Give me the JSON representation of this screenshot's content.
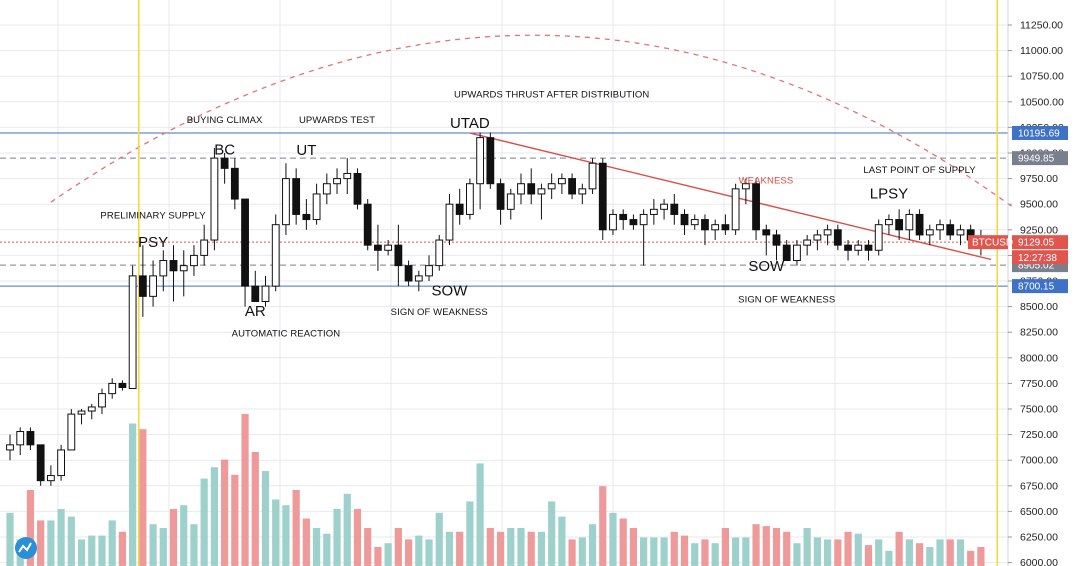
{
  "chart_data": {
    "type": "candlestick",
    "symbol": "BTCUSD",
    "countdown": "12:27:38",
    "ylim": [
      6000,
      11500
    ],
    "y_ticks": [
      "11250.00",
      "11000.00",
      "10750.00",
      "10500.00",
      "10250.00",
      "10000.00",
      "9750.00",
      "9500.00",
      "9250.00",
      "9000.00",
      "8750.00",
      "8500.00",
      "8250.00",
      "8000.00",
      "7750.00",
      "7500.00",
      "7250.00",
      "7000.00",
      "6750.00",
      "6500.00",
      "6250.00",
      "6000.00"
    ],
    "price_levels": [
      {
        "label": "10195.69",
        "value": 10195.69,
        "style": "solid",
        "color": "#3d72c6"
      },
      {
        "label": "9949.85",
        "value": 9949.85,
        "style": "dashed",
        "color": "#7a7f8e"
      },
      {
        "label": "9129.05",
        "value": 9129.05,
        "style": "dotted",
        "color": "#e0564f"
      },
      {
        "label": "8905.02",
        "value": 8905.02,
        "style": "dashed",
        "color": "#7a7f8e"
      },
      {
        "label": "8700.15",
        "value": 8700.15,
        "style": "solid",
        "color": "#3d72c6"
      }
    ],
    "candles": [
      {
        "o": 7100,
        "h": 7250,
        "l": 7000,
        "c": 7150
      },
      {
        "o": 7150,
        "h": 7320,
        "l": 7050,
        "c": 7280
      },
      {
        "o": 7280,
        "h": 7320,
        "l": 7100,
        "c": 7150
      },
      {
        "o": 7150,
        "h": 7150,
        "l": 6750,
        "c": 6800
      },
      {
        "o": 6800,
        "h": 6950,
        "l": 6750,
        "c": 6850
      },
      {
        "o": 6850,
        "h": 7150,
        "l": 6800,
        "c": 7100
      },
      {
        "o": 7100,
        "h": 7500,
        "l": 7100,
        "c": 7450
      },
      {
        "o": 7450,
        "h": 7500,
        "l": 7350,
        "c": 7480
      },
      {
        "o": 7480,
        "h": 7550,
        "l": 7400,
        "c": 7520
      },
      {
        "o": 7520,
        "h": 7700,
        "l": 7450,
        "c": 7650
      },
      {
        "o": 7650,
        "h": 7800,
        "l": 7600,
        "c": 7750
      },
      {
        "o": 7750,
        "h": 7780,
        "l": 7680,
        "c": 7710
      },
      {
        "o": 7700,
        "h": 8900,
        "l": 7700,
        "c": 8800
      },
      {
        "o": 8800,
        "h": 9100,
        "l": 8400,
        "c": 8600
      },
      {
        "o": 8600,
        "h": 8950,
        "l": 8500,
        "c": 8800
      },
      {
        "o": 8800,
        "h": 9050,
        "l": 8650,
        "c": 8950
      },
      {
        "o": 8950,
        "h": 9100,
        "l": 8550,
        "c": 8850
      },
      {
        "o": 8850,
        "h": 9050,
        "l": 8600,
        "c": 8900
      },
      {
        "o": 8900,
        "h": 9100,
        "l": 8800,
        "c": 9000
      },
      {
        "o": 9000,
        "h": 9300,
        "l": 8900,
        "c": 9150
      },
      {
        "o": 9150,
        "h": 10050,
        "l": 9050,
        "c": 9950
      },
      {
        "o": 9950,
        "h": 10000,
        "l": 9700,
        "c": 9850
      },
      {
        "o": 9850,
        "h": 9950,
        "l": 9450,
        "c": 9550
      },
      {
        "o": 9550,
        "h": 9550,
        "l": 8500,
        "c": 8700
      },
      {
        "o": 8700,
        "h": 8850,
        "l": 8600,
        "c": 8550
      },
      {
        "o": 8550,
        "h": 8800,
        "l": 8500,
        "c": 8700
      },
      {
        "o": 8700,
        "h": 9400,
        "l": 8650,
        "c": 9300
      },
      {
        "o": 9300,
        "h": 9900,
        "l": 9200,
        "c": 9750
      },
      {
        "o": 9750,
        "h": 9850,
        "l": 9300,
        "c": 9400
      },
      {
        "o": 9400,
        "h": 9550,
        "l": 9250,
        "c": 9350
      },
      {
        "o": 9350,
        "h": 9700,
        "l": 9300,
        "c": 9600
      },
      {
        "o": 9600,
        "h": 9800,
        "l": 9500,
        "c": 9700
      },
      {
        "o": 9700,
        "h": 9850,
        "l": 9600,
        "c": 9750
      },
      {
        "o": 9750,
        "h": 9950,
        "l": 9600,
        "c": 9800
      },
      {
        "o": 9800,
        "h": 9850,
        "l": 9450,
        "c": 9500
      },
      {
        "o": 9500,
        "h": 9550,
        "l": 9050,
        "c": 9100
      },
      {
        "o": 9100,
        "h": 9300,
        "l": 8850,
        "c": 9050
      },
      {
        "o": 9050,
        "h": 9150,
        "l": 9000,
        "c": 9100
      },
      {
        "o": 9100,
        "h": 9300,
        "l": 8700,
        "c": 8900
      },
      {
        "o": 8900,
        "h": 8950,
        "l": 8700,
        "c": 8750
      },
      {
        "o": 8750,
        "h": 8850,
        "l": 8650,
        "c": 8800
      },
      {
        "o": 8800,
        "h": 9000,
        "l": 8750,
        "c": 8900
      },
      {
        "o": 8900,
        "h": 9200,
        "l": 8850,
        "c": 9150
      },
      {
        "o": 9150,
        "h": 9600,
        "l": 9100,
        "c": 9500
      },
      {
        "o": 9500,
        "h": 9650,
        "l": 9300,
        "c": 9400
      },
      {
        "o": 9400,
        "h": 9750,
        "l": 9350,
        "c": 9700
      },
      {
        "o": 9700,
        "h": 10200,
        "l": 9450,
        "c": 10150
      },
      {
        "o": 10150,
        "h": 10200,
        "l": 9650,
        "c": 9700
      },
      {
        "o": 9700,
        "h": 9750,
        "l": 9300,
        "c": 9450
      },
      {
        "o": 9450,
        "h": 9650,
        "l": 9350,
        "c": 9600
      },
      {
        "o": 9600,
        "h": 9800,
        "l": 9500,
        "c": 9700
      },
      {
        "o": 9700,
        "h": 9850,
        "l": 9500,
        "c": 9600
      },
      {
        "o": 9600,
        "h": 9700,
        "l": 9350,
        "c": 9650
      },
      {
        "o": 9650,
        "h": 9800,
        "l": 9550,
        "c": 9700
      },
      {
        "o": 9700,
        "h": 9800,
        "l": 9600,
        "c": 9750
      },
      {
        "o": 9750,
        "h": 9800,
        "l": 9550,
        "c": 9600
      },
      {
        "o": 9600,
        "h": 9700,
        "l": 9500,
        "c": 9650
      },
      {
        "o": 9650,
        "h": 9950,
        "l": 9600,
        "c": 9900
      },
      {
        "o": 9900,
        "h": 9950,
        "l": 9150,
        "c": 9250
      },
      {
        "o": 9250,
        "h": 9450,
        "l": 9200,
        "c": 9400
      },
      {
        "o": 9400,
        "h": 9450,
        "l": 9250,
        "c": 9350
      },
      {
        "o": 9350,
        "h": 9400,
        "l": 9250,
        "c": 9300
      },
      {
        "o": 9300,
        "h": 9450,
        "l": 8900,
        "c": 9400
      },
      {
        "o": 9400,
        "h": 9550,
        "l": 9300,
        "c": 9450
      },
      {
        "o": 9450,
        "h": 9550,
        "l": 9350,
        "c": 9500
      },
      {
        "o": 9500,
        "h": 9600,
        "l": 9300,
        "c": 9400
      },
      {
        "o": 9400,
        "h": 9450,
        "l": 9200,
        "c": 9300
      },
      {
        "o": 9300,
        "h": 9400,
        "l": 9250,
        "c": 9350
      },
      {
        "o": 9350,
        "h": 9400,
        "l": 9100,
        "c": 9250
      },
      {
        "o": 9250,
        "h": 9350,
        "l": 9150,
        "c": 9300
      },
      {
        "o": 9300,
        "h": 9400,
        "l": 9200,
        "c": 9250
      },
      {
        "o": 9250,
        "h": 9700,
        "l": 9200,
        "c": 9650
      },
      {
        "o": 9650,
        "h": 9750,
        "l": 9500,
        "c": 9700
      },
      {
        "o": 9700,
        "h": 9750,
        "l": 9150,
        "c": 9250
      },
      {
        "o": 9250,
        "h": 9300,
        "l": 9000,
        "c": 9200
      },
      {
        "o": 9200,
        "h": 9250,
        "l": 8950,
        "c": 9100
      },
      {
        "o": 9100,
        "h": 9150,
        "l": 8950,
        "c": 8950
      },
      {
        "o": 8950,
        "h": 9150,
        "l": 8900,
        "c": 9100
      },
      {
        "o": 9100,
        "h": 9200,
        "l": 9000,
        "c": 9150
      },
      {
        "o": 9150,
        "h": 9250,
        "l": 9050,
        "c": 9200
      },
      {
        "o": 9200,
        "h": 9300,
        "l": 9100,
        "c": 9250
      },
      {
        "o": 9250,
        "h": 9300,
        "l": 9050,
        "c": 9100
      },
      {
        "o": 9100,
        "h": 9150,
        "l": 8950,
        "c": 9050
      },
      {
        "o": 9050,
        "h": 9150,
        "l": 9000,
        "c": 9100
      },
      {
        "o": 9100,
        "h": 9150,
        "l": 8950,
        "c": 9050
      },
      {
        "o": 9050,
        "h": 9350,
        "l": 9000,
        "c": 9300
      },
      {
        "o": 9300,
        "h": 9400,
        "l": 9200,
        "c": 9350
      },
      {
        "o": 9350,
        "h": 9450,
        "l": 9150,
        "c": 9250
      },
      {
        "o": 9250,
        "h": 9450,
        "l": 9150,
        "c": 9400
      },
      {
        "o": 9400,
        "h": 9450,
        "l": 9150,
        "c": 9200
      },
      {
        "o": 9200,
        "h": 9300,
        "l": 9100,
        "c": 9250
      },
      {
        "o": 9250,
        "h": 9350,
        "l": 9150,
        "c": 9300
      },
      {
        "o": 9300,
        "h": 9350,
        "l": 9150,
        "c": 9200
      },
      {
        "o": 9200,
        "h": 9300,
        "l": 9100,
        "c": 9250
      },
      {
        "o": 9250,
        "h": 9300,
        "l": 9100,
        "c": 9150
      },
      {
        "o": 9150,
        "h": 9250,
        "l": 9000,
        "c": 9100
      }
    ],
    "volumes": [
      0.28,
      0.14,
      0.4,
      0.24,
      0.24,
      0.3,
      0.26,
      0.14,
      0.16,
      0.16,
      0.24,
      0.18,
      0.75,
      0.72,
      0.22,
      0.2,
      0.3,
      0.32,
      0.22,
      0.46,
      0.52,
      0.56,
      0.48,
      0.8,
      0.6,
      0.5,
      0.35,
      0.32,
      0.4,
      0.25,
      0.2,
      0.17,
      0.3,
      0.38,
      0.3,
      0.2,
      0.1,
      0.12,
      0.2,
      0.14,
      0.16,
      0.14,
      0.28,
      0.18,
      0.18,
      0.34,
      0.54,
      0.2,
      0.18,
      0.2,
      0.2,
      0.18,
      0.18,
      0.34,
      0.26,
      0.14,
      0.15,
      0.22,
      0.42,
      0.28,
      0.25,
      0.2,
      0.15,
      0.15,
      0.15,
      0.18,
      0.16,
      0.12,
      0.14,
      0.12,
      0.2,
      0.15,
      0.15,
      0.22,
      0.21,
      0.2,
      0.18,
      0.12,
      0.2,
      0.15,
      0.14,
      0.14,
      0.18,
      0.17,
      0.11,
      0.14,
      0.08,
      0.18,
      0.14,
      0.12,
      0.1,
      0.14,
      0.14,
      0.14,
      0.08,
      0.1,
      0.07
    ],
    "annotations_big": [
      {
        "text": "BC",
        "price": 9985,
        "index": 21
      },
      {
        "text": "UT",
        "price": 9980,
        "index": 29
      },
      {
        "text": "UTAD",
        "price": 10245,
        "index": 45
      },
      {
        "text": "LPSY",
        "price": 9555,
        "index": 86
      },
      {
        "text": "PSY",
        "price": 9080,
        "index": 14
      },
      {
        "text": "AR",
        "price": 8407,
        "index": 24
      },
      {
        "text": "SOW",
        "price": 8610,
        "index": 43
      },
      {
        "text": "SOW",
        "price": 8850,
        "index": 74
      }
    ],
    "annotations_small": [
      {
        "text": "BUYING CLIMAX",
        "price": 10295,
        "index": 21
      },
      {
        "text": "UPWARDS TEST",
        "price": 10295,
        "index": 32
      },
      {
        "text": "UPWARDS THRUST AFTER DISTRIBUTION",
        "price": 10540,
        "index": 53
      },
      {
        "text": "LAST POINT OF SUPPLY",
        "price": 9805,
        "index": 89
      },
      {
        "text": "PRELIMINARY SUPPLY",
        "price": 9360,
        "index": 14
      },
      {
        "text": "AUTOMATIC REACTION",
        "price": 8210,
        "index": 27
      },
      {
        "text": "SIGN OF WEAKNESS",
        "price": 8420,
        "index": 42
      },
      {
        "text": "SIGN OF WEAKNESS",
        "price": 8540,
        "index": 76
      }
    ],
    "weakness_label": {
      "text": "WEAKNESS",
      "price": 9700,
      "index": 71
    },
    "trendline": {
      "from_index": 45,
      "from_price": 10195,
      "to_index": 96,
      "to_price": 8960
    },
    "vertical_markers_index": [
      12.6,
      96.6
    ],
    "colors": {
      "up": "#ffffff",
      "down": "#111111",
      "wick": "#111111",
      "vol_up": "#9fd1cc",
      "vol_down": "#ef9a9a",
      "grid": "#e6e9ef",
      "vline": "#f7d642",
      "trendline": "#d94f4a",
      "arc": "#e57373",
      "symbol_bg": "#e0564f"
    }
  }
}
